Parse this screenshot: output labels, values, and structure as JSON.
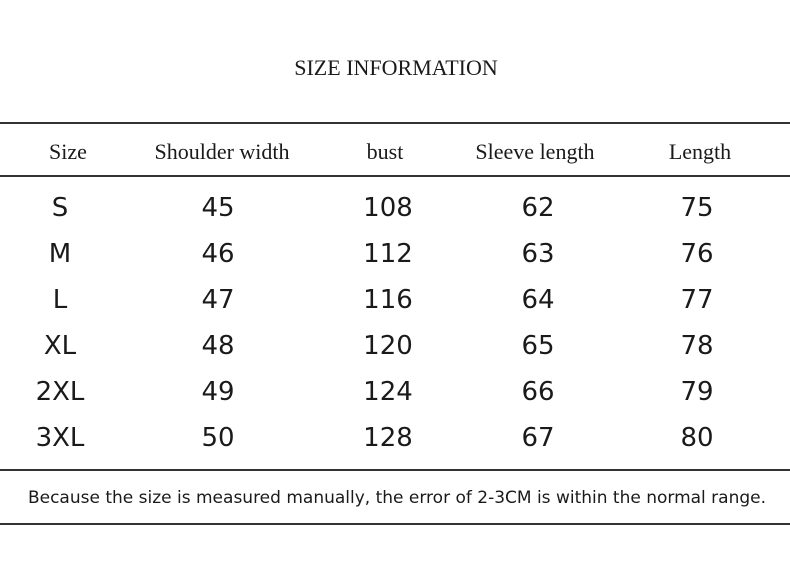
{
  "title": "SIZE INFORMATION",
  "table": {
    "header": [
      "Size",
      "Shoulder width",
      "bust",
      "Sleeve length",
      "Length"
    ],
    "rows": [
      [
        "S",
        45,
        108,
        62,
        75
      ],
      [
        "M",
        46,
        112,
        63,
        76
      ],
      [
        "L",
        47,
        116,
        64,
        77
      ],
      [
        "XL",
        48,
        120,
        65,
        78
      ],
      [
        "2XL",
        49,
        124,
        66,
        79
      ],
      [
        "3XL",
        50,
        128,
        67,
        80
      ]
    ]
  },
  "note": "Because the size is measured manually, the error of 2-3CM is within the normal range."
}
